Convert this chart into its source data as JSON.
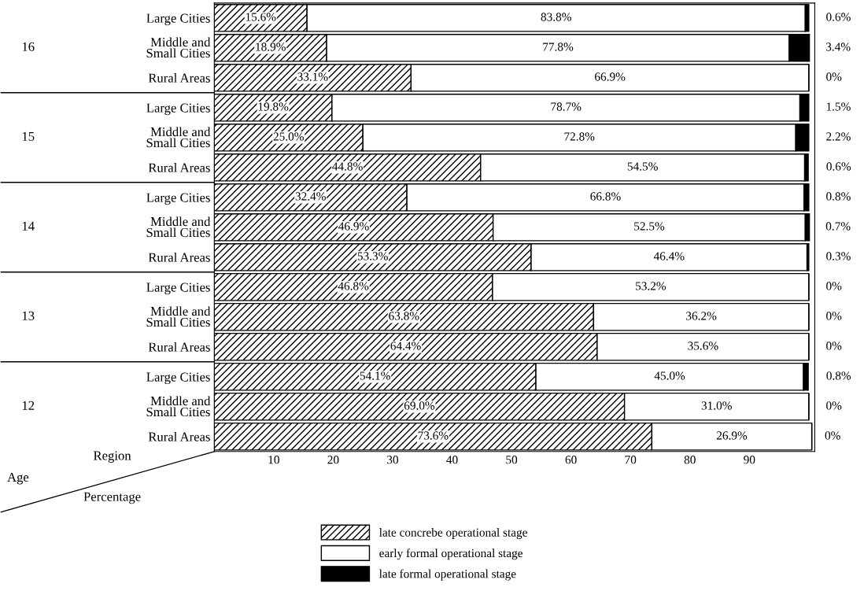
{
  "chart_data": {
    "type": "bar",
    "orientation": "horizontal",
    "stacked": true,
    "categories": [
      "Large Cities",
      "Middle and\nSmall Cities",
      "Rural Areas",
      "Large Cities",
      "Middle and\nSmall Cities",
      "Rural Areas",
      "Large Cities",
      "Middle and\nSmall Cities",
      "Rural Areas",
      "Large Cities",
      "Middle and\nSmall Cities",
      "Rural Areas",
      "Large Cities",
      "Middle and\nSmall Cities",
      "Rural Areas"
    ],
    "series": [
      {
        "name": "late concrebe operational stage",
        "color": "#000000",
        "values": [
          15.6,
          18.9,
          33.1,
          19.8,
          25.0,
          44.8,
          32.4,
          46.9,
          53.3,
          46.8,
          63.8,
          64.4,
          54.1,
          69.0,
          73.6
        ],
        "value_labels": [
          "15.6%",
          "18.9%",
          "33.1%",
          "19.8%",
          "25.0%",
          "44.8%",
          "32.4%",
          "46.9%",
          "53.3%",
          "46.8%",
          "63.8%",
          "64.4%",
          "54.1%",
          "69.0%",
          "73.6%"
        ]
      },
      {
        "name": "early formal operational stage",
        "color": "#ffffff",
        "values": [
          83.8,
          77.8,
          66.9,
          78.7,
          72.8,
          54.5,
          66.8,
          52.5,
          46.4,
          53.2,
          36.2,
          35.6,
          45.0,
          31.0,
          26.9
        ],
        "value_labels": [
          "83.8%",
          "77.8%",
          "66.9%",
          "78.7%",
          "72.8%",
          "54.5%",
          "66.8%",
          "52.5%",
          "46.4%",
          "53.2%",
          "36.2%",
          "35.6%",
          "45.0%",
          "31.0%",
          "26.9%"
        ]
      },
      {
        "name": "late formal operational stage",
        "color": "#000000",
        "values": [
          0.6,
          3.4,
          0,
          1.5,
          2.2,
          0.6,
          0.8,
          0.7,
          0.3,
          0,
          0,
          0,
          0.8,
          0,
          0
        ],
        "value_labels": [
          "0.6%",
          "3.4%",
          "0%",
          "1.5%",
          "2.2%",
          "0.6%",
          "0.8%",
          "0.7%",
          "0.3%",
          "0%",
          "0%",
          "0%",
          "0.8%",
          "0%",
          "0%"
        ]
      }
    ],
    "xlim": [
      0,
      101
    ],
    "xticks": [
      10,
      20,
      30,
      40,
      50,
      60,
      70,
      80,
      90
    ],
    "xlabel": "Percentage",
    "ylabel": "Region",
    "annotations": [
      "Age",
      "16",
      "15",
      "14",
      "13",
      "12"
    ],
    "legend": "bottom",
    "grid": false
  }
}
